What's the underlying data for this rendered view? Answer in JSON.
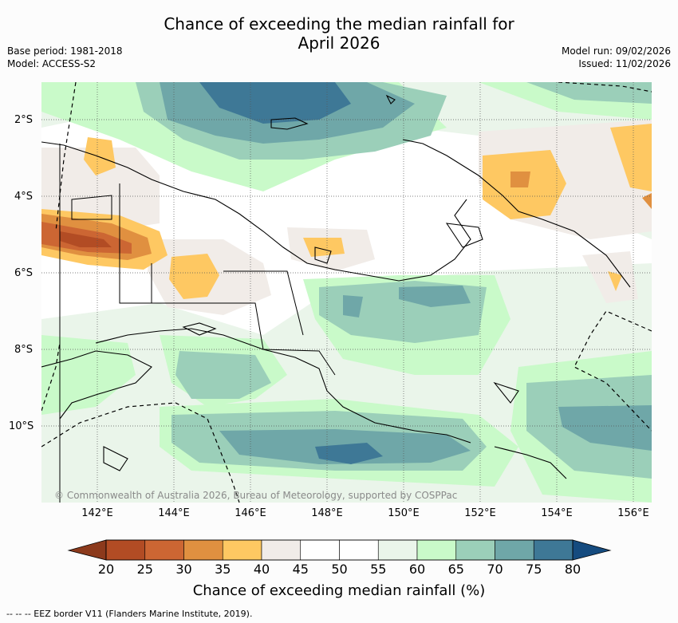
{
  "title": {
    "line1": "Chance of exceeding the median rainfall for",
    "line2": "April 2026"
  },
  "meta": {
    "base_period": "Base period: 1981-2018",
    "model": "Model: ACCESS-S2",
    "model_run": "Model run: 09/02/2026",
    "issued": "Issued: 11/02/2026"
  },
  "map": {
    "lat_labels": [
      "2°S",
      "4°S",
      "6°S",
      "8°S",
      "10°S"
    ],
    "lon_labels": [
      "142°E",
      "144°E",
      "146°E",
      "148°E",
      "150°E",
      "152°E",
      "154°E",
      "156°E"
    ],
    "copyright": "© Commonwealth of Australia 2026, Bureau of Meteorology, supported by COSPPac"
  },
  "colorbar": {
    "ticks": [
      "20",
      "25",
      "30",
      "35",
      "40",
      "45",
      "50",
      "55",
      "60",
      "65",
      "70",
      "75",
      "80"
    ],
    "colors": [
      "#8c3a1c",
      "#b24c24",
      "#cc6633",
      "#e09040",
      "#fec862",
      "#f1ece8",
      "#ffffff",
      "#ffffff",
      "#eaf5ea",
      "#c9fac9",
      "#9bcfb9",
      "#6fa7a8",
      "#3e7896",
      "#154b7f"
    ],
    "label": "Chance of exceeding median rainfall (%)"
  },
  "footnote": "--  --  -- EEZ border V11 (Flanders Marine Institute, 2019)."
}
